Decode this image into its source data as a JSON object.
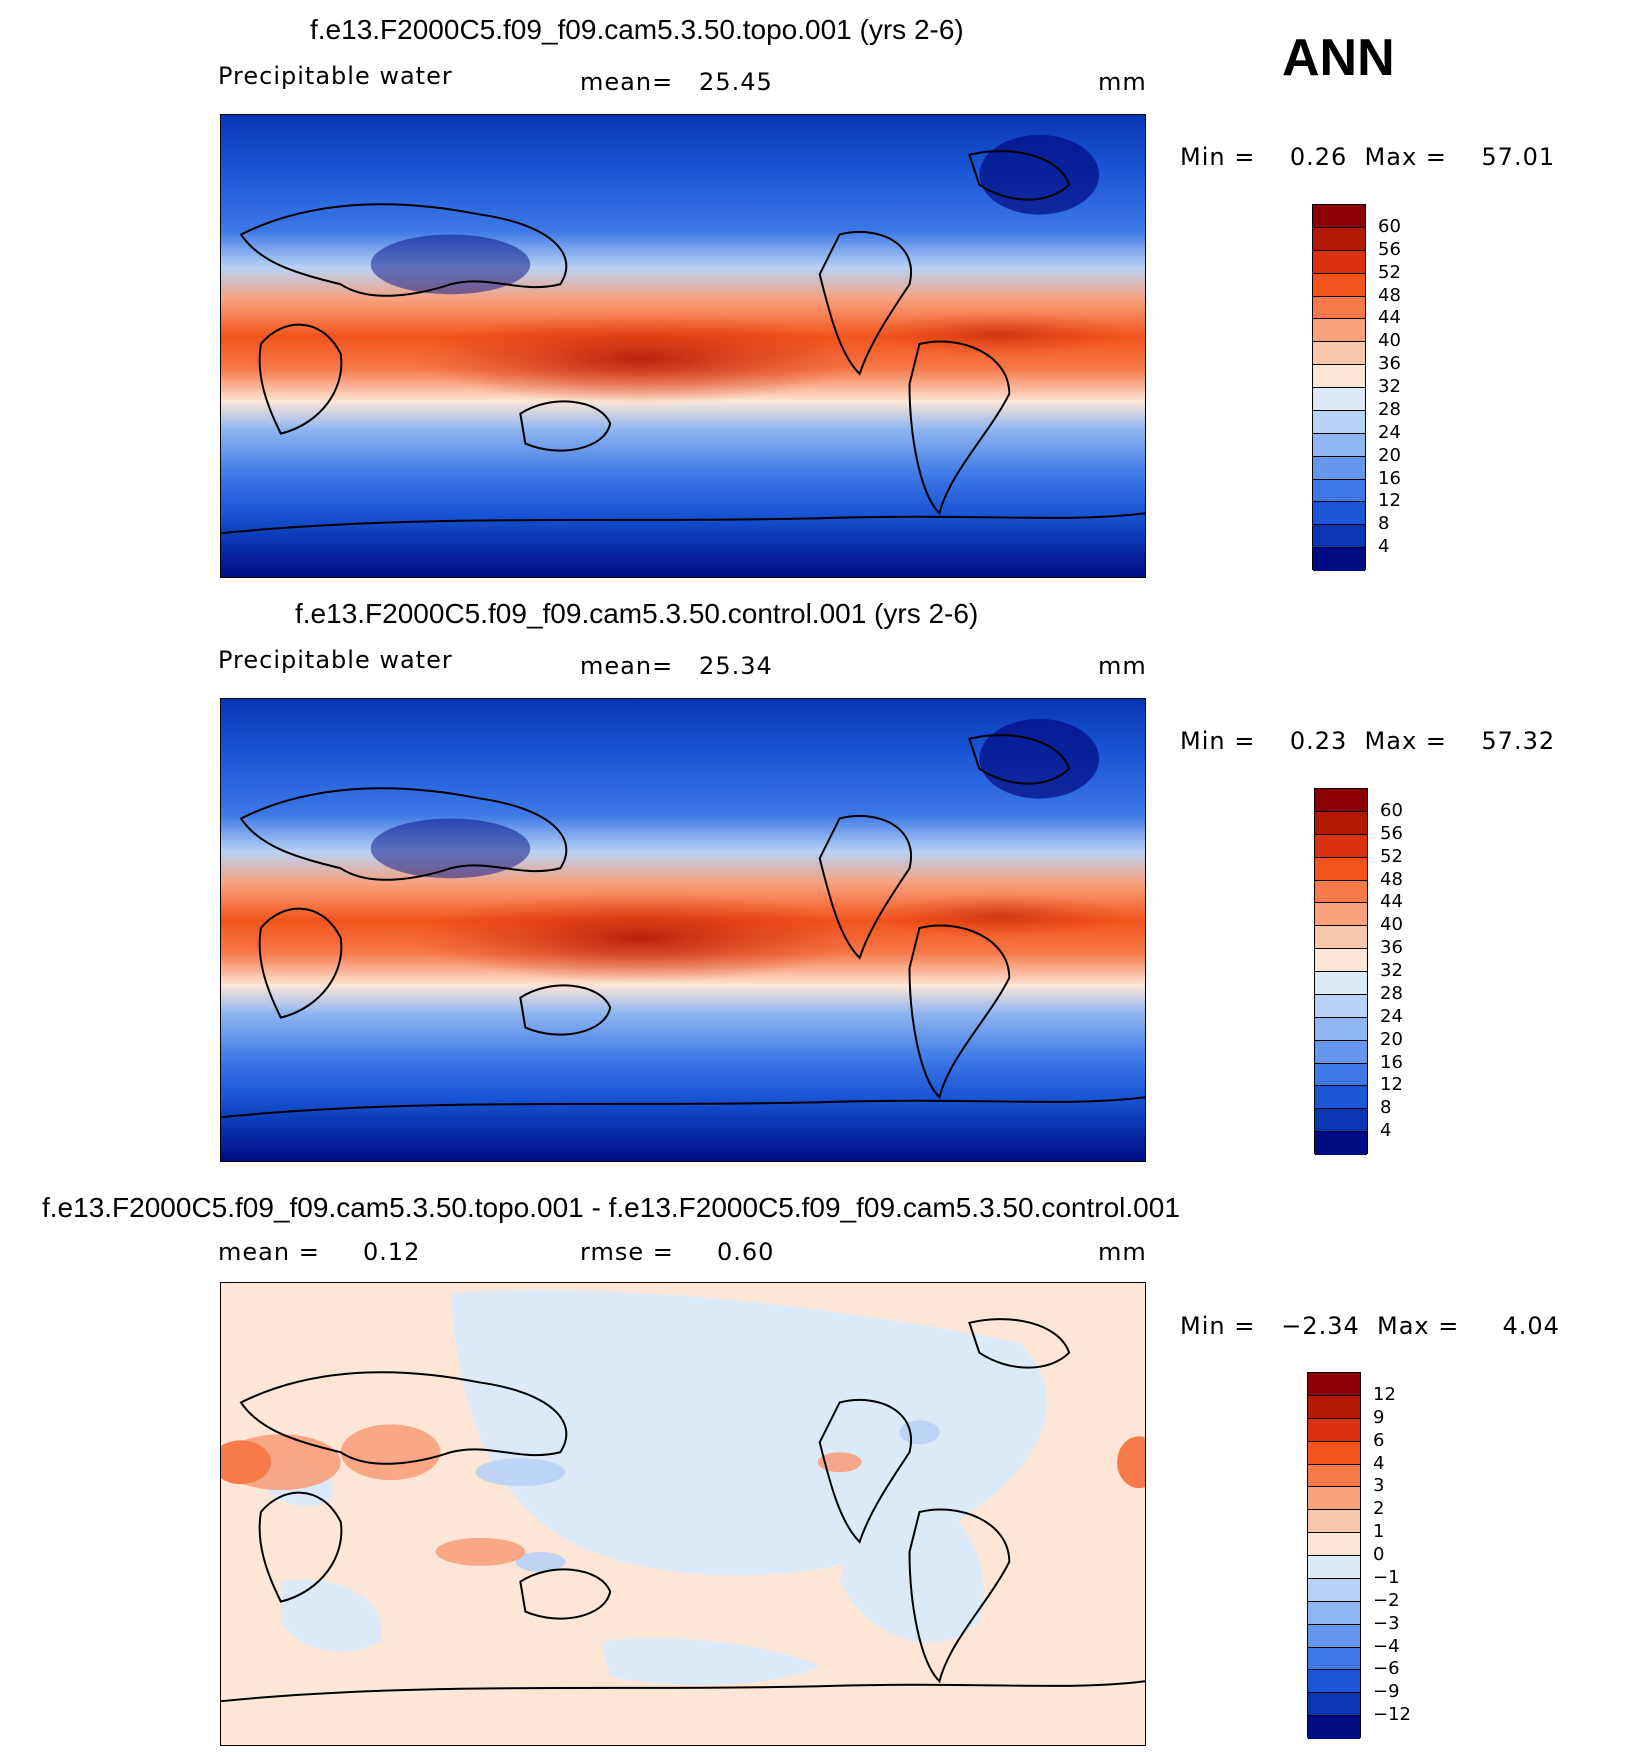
{
  "season": "ANN",
  "panels": [
    {
      "title": "f.e13.F2000C5.f09_f09.cam5.3.50.topo.001 (yrs 2-6)",
      "left_label": "Precipitable water",
      "center_label": "mean=   25.45",
      "units": "mm",
      "minmax": "Min =    0.26  Max =    57.01",
      "colorbar": {
        "labels": [
          "60",
          "56",
          "52",
          "48",
          "44",
          "40",
          "36",
          "32",
          "28",
          "24",
          "20",
          "16",
          "12",
          "8",
          "4"
        ],
        "colors": [
          "#8b0000",
          "#b31a06",
          "#d9300e",
          "#f2541c",
          "#f77a4a",
          "#f9a07c",
          "#fbc7ab",
          "#fde6d6",
          "#dbe9f9",
          "#b8d2f5",
          "#8fb6f0",
          "#6598ec",
          "#3d78e6",
          "#1a56d6",
          "#0a36b4",
          "#020c82"
        ]
      }
    },
    {
      "title": "f.e13.F2000C5.f09_f09.cam5.3.50.control.001 (yrs 2-6)",
      "left_label": "Precipitable water",
      "center_label": "mean=   25.34",
      "units": "mm",
      "minmax": "Min =    0.23  Max =    57.32",
      "colorbar": {
        "labels": [
          "60",
          "56",
          "52",
          "48",
          "44",
          "40",
          "36",
          "32",
          "28",
          "24",
          "20",
          "16",
          "12",
          "8",
          "4"
        ],
        "colors": [
          "#8b0000",
          "#b31a06",
          "#d9300e",
          "#f2541c",
          "#f77a4a",
          "#f9a07c",
          "#fbc7ab",
          "#fde6d6",
          "#dbe9f9",
          "#b8d2f5",
          "#8fb6f0",
          "#6598ec",
          "#3d78e6",
          "#1a56d6",
          "#0a36b4",
          "#020c82"
        ]
      }
    },
    {
      "title": "f.e13.F2000C5.f09_f09.cam5.3.50.topo.001 - f.e13.F2000C5.f09_f09.cam5.3.50.control.001",
      "left_label": "mean =     0.12",
      "center_label": "rmse =     0.60",
      "units": "mm",
      "minmax": "Min =   −2.34  Max =     4.04",
      "colorbar": {
        "labels": [
          "12",
          "9",
          "6",
          "4",
          "3",
          "2",
          "1",
          "0",
          "−1",
          "−2",
          "−3",
          "−4",
          "−6",
          "−9",
          "−12"
        ],
        "colors": [
          "#8b0000",
          "#b31a06",
          "#d9300e",
          "#f2541c",
          "#f77a4a",
          "#f9a07c",
          "#fbc7ab",
          "#fde6d6",
          "#dbe9f9",
          "#b8d2f5",
          "#8fb6f0",
          "#6598ec",
          "#3d78e6",
          "#1a56d6",
          "#0a36b4",
          "#020c82"
        ]
      }
    }
  ]
}
